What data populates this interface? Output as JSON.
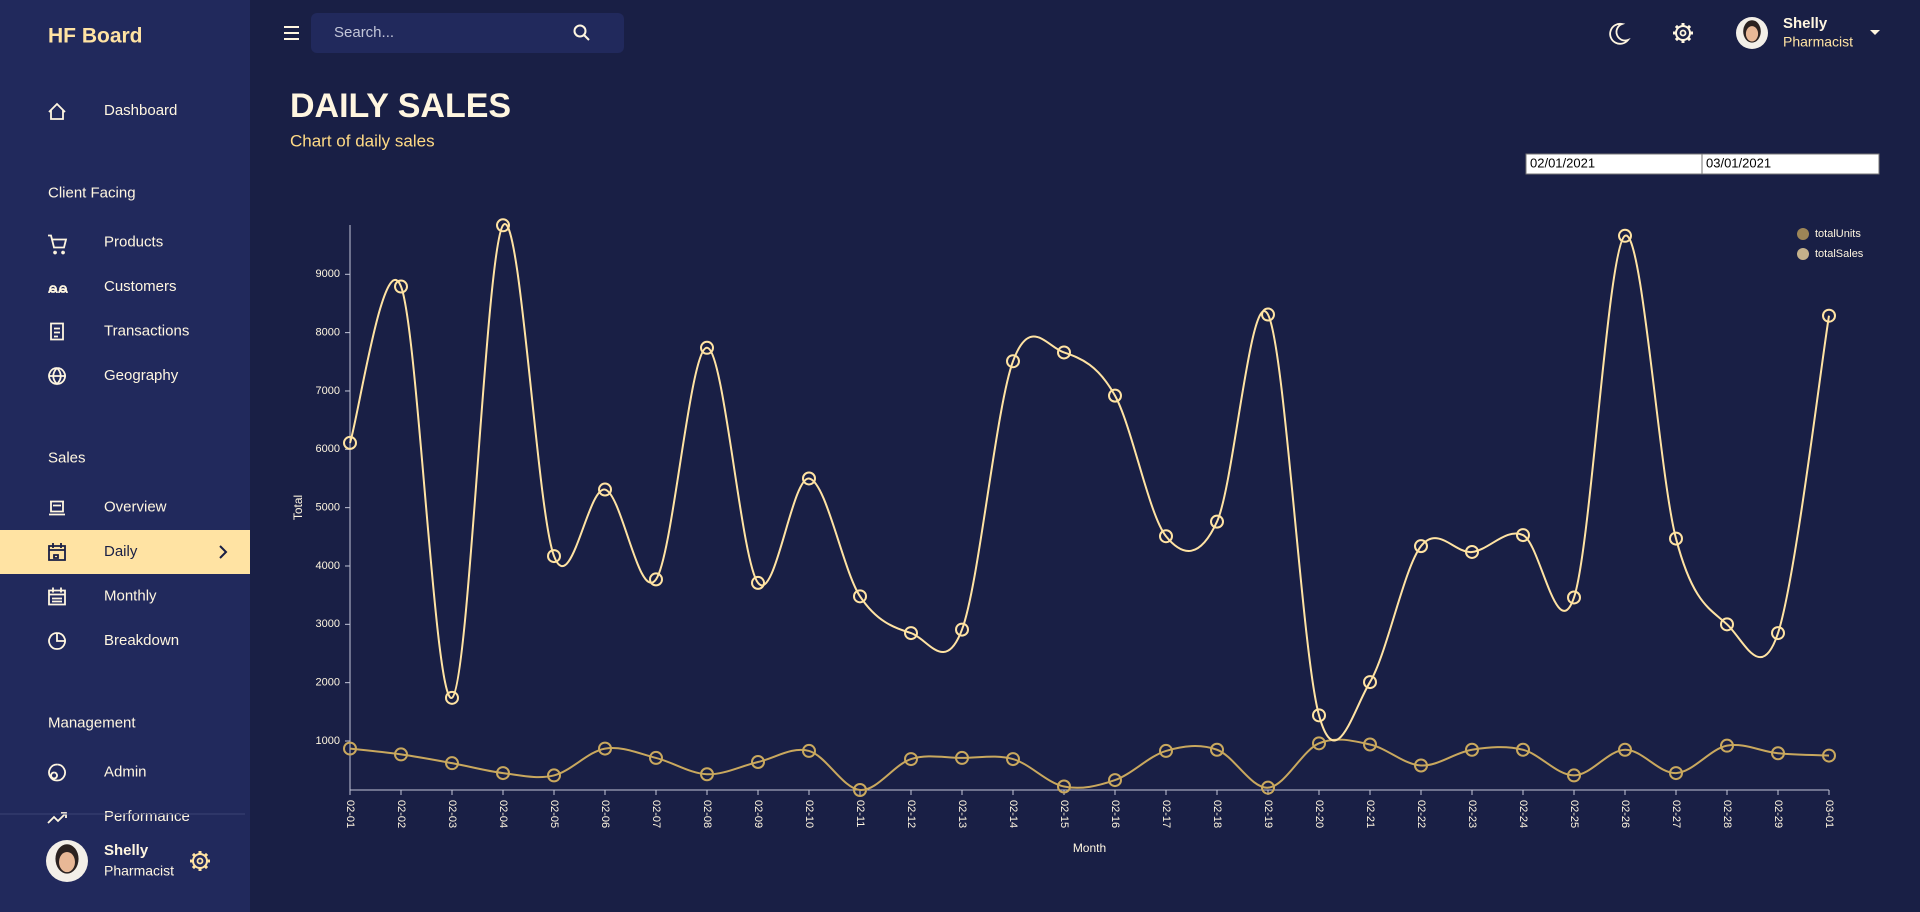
{
  "sidebar": {
    "brand": "HF Board",
    "nav": [
      {
        "items": [
          {
            "label": "Dashboard"
          }
        ]
      },
      {
        "heading": "Client Facing",
        "items": [
          {
            "label": "Products"
          },
          {
            "label": "Customers"
          },
          {
            "label": "Transactions"
          },
          {
            "label": "Geography"
          }
        ]
      },
      {
        "heading": "Sales",
        "items": [
          {
            "label": "Overview"
          },
          {
            "label": "Daily",
            "active": true
          },
          {
            "label": "Monthly"
          },
          {
            "label": "Breakdown"
          }
        ]
      },
      {
        "heading": "Management",
        "items": [
          {
            "label": "Admin"
          },
          {
            "label": "Performance"
          }
        ]
      }
    ],
    "user": {
      "name": "Shelly",
      "role": "Pharmacist"
    }
  },
  "topbar": {
    "search_placeholder": "Search...",
    "user": {
      "name": "Shelly",
      "role": "Pharmacist"
    }
  },
  "header": {
    "title": "DAILY SALES",
    "subtitle": "Chart of daily sales"
  },
  "date_range": {
    "start": "02/01/2021",
    "end": "03/01/2021"
  },
  "chart_data": {
    "type": "line",
    "xlabel": "Month",
    "ylabel": "Total",
    "legend": "top-right",
    "categories": [
      "02-01",
      "02-02",
      "02-03",
      "02-04",
      "02-05",
      "02-06",
      "02-07",
      "02-08",
      "02-09",
      "02-10",
      "02-11",
      "02-12",
      "02-13",
      "02-14",
      "02-15",
      "02-16",
      "02-17",
      "02-18",
      "02-19",
      "02-20",
      "02-21",
      "02-22",
      "02-23",
      "02-24",
      "02-25",
      "02-26",
      "02-27",
      "02-28",
      "02-29",
      "03-01"
    ],
    "series": [
      {
        "name": "totalUnits",
        "color": "#c9a85e",
        "values": [
          870,
          770,
          620,
          450,
          410,
          870,
          710,
          430,
          640,
          830,
          160,
          690,
          710,
          690,
          220,
          330,
          830,
          850,
          200,
          960,
          940,
          580,
          850,
          850,
          410,
          850,
          450,
          920,
          790,
          750
        ]
      },
      {
        "name": "totalSales",
        "color": "#ffe3a3",
        "values": [
          6110,
          8790,
          1740,
          9840,
          4170,
          5310,
          3770,
          7740,
          3710,
          5500,
          3480,
          2850,
          2910,
          7510,
          7660,
          6920,
          4510,
          4760,
          8310,
          1440,
          2010,
          4340,
          4240,
          4530,
          3460,
          9660,
          4470,
          3000,
          2850,
          8290
        ]
      }
    ],
    "ylim": [
      160,
      9845
    ],
    "yticks": [
      1000,
      2000,
      3000,
      4000,
      5000,
      6000,
      7000,
      8000,
      9000
    ],
    "grid": false
  }
}
